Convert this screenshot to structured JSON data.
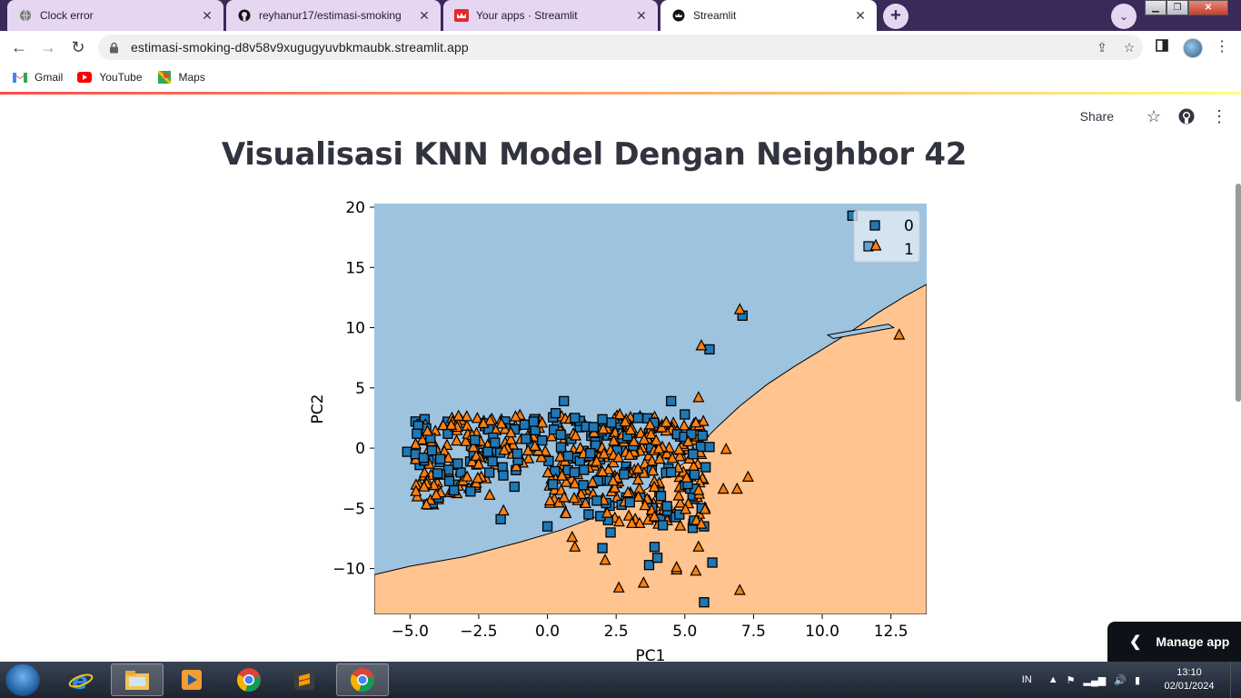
{
  "browser": {
    "tabs": [
      {
        "title": "Clock error",
        "active": false
      },
      {
        "title": "reyhanur17/estimasi-smoking",
        "active": false
      },
      {
        "title": "Your apps · Streamlit",
        "active": false
      },
      {
        "title": "Streamlit",
        "active": true
      }
    ],
    "address": "estimasi-smoking-d8v58v9xugugyuvbkmaubk.streamlit.app",
    "bookmarks": [
      {
        "label": "Gmail",
        "icon": "gmail-icon"
      },
      {
        "label": "YouTube",
        "icon": "youtube-icon"
      },
      {
        "label": "Maps",
        "icon": "maps-icon"
      }
    ]
  },
  "app": {
    "share_label": "Share",
    "title": "Visualisasi KNN Model Dengan Neighbor 42",
    "manage_label": "Manage app"
  },
  "chart_data": {
    "type": "scatter",
    "title": "",
    "xlabel": "PC1",
    "ylabel": "PC2",
    "xlim": [
      -6.3,
      13.8
    ],
    "ylim": [
      -13.8,
      20.3
    ],
    "xticks": [
      -5.0,
      -2.5,
      0.0,
      2.5,
      5.0,
      7.5,
      10.0,
      12.5
    ],
    "yticks": [
      20,
      15,
      10,
      5,
      0,
      -5,
      -10
    ],
    "xtick_labels": [
      "−5.0",
      "−2.5",
      "0.0",
      "2.5",
      "5.0",
      "7.5",
      "10.0",
      "12.5"
    ],
    "ytick_labels": [
      "20",
      "15",
      "10",
      "5",
      "0",
      "−5",
      "−10"
    ],
    "legend": {
      "position": "top-right",
      "entries": [
        {
          "label": "0",
          "marker": "square"
        },
        {
          "label": "1",
          "marker": "triangle"
        }
      ]
    },
    "colors": {
      "class0_region": "#9dc3df",
      "class1_region": "#ffc490",
      "class0_marker": "#1f77b4",
      "class1_marker": "#ff7f0e"
    },
    "series": [
      {
        "name": "0",
        "marker": "square",
        "points": [
          [
            -5.1,
            -0.3
          ],
          [
            -4.8,
            -0.5
          ],
          [
            -4.5,
            -0.8
          ],
          [
            -4.2,
            -0.2
          ],
          [
            -3.9,
            -0.9
          ],
          [
            -3.6,
            -1.8
          ],
          [
            -3.4,
            -3.5
          ],
          [
            -2.8,
            -3.6
          ],
          [
            -3.9,
            -2.2
          ],
          [
            -1.7,
            -5.9
          ],
          [
            -1.2,
            -3.2
          ],
          [
            0.0,
            -6.5
          ],
          [
            0.3,
            2.9
          ],
          [
            0.6,
            3.9
          ],
          [
            2.0,
            2.4
          ],
          [
            2.0,
            -8.3
          ],
          [
            3.9,
            -8.2
          ],
          [
            3.7,
            -9.7
          ],
          [
            4.0,
            -9.1
          ],
          [
            4.2,
            -6.4
          ],
          [
            5.0,
            2.8
          ],
          [
            5.7,
            -6.5
          ],
          [
            6.0,
            -9.5
          ],
          [
            5.7,
            -12.8
          ],
          [
            4.5,
            3.9
          ],
          [
            5.9,
            0.1
          ],
          [
            5.9,
            8.2
          ],
          [
            7.1,
            11.0
          ],
          [
            11.1,
            19.3
          ],
          [
            -4.0,
            -2.1
          ],
          [
            -2.0,
            -1.1
          ],
          [
            -0.5,
            2.2
          ],
          [
            1.0,
            2.5
          ],
          [
            3.3,
            2.5
          ],
          [
            2.3,
            -7.0
          ],
          [
            1.5,
            -5.5
          ],
          [
            0.2,
            -3.0
          ],
          [
            3.0,
            -4.5
          ],
          [
            4.5,
            -2.0
          ],
          [
            5.3,
            -0.5
          ]
        ]
      },
      {
        "name": "1",
        "marker": "triangle",
        "points": [
          [
            12.8,
            9.4
          ],
          [
            7.0,
            11.5
          ],
          [
            5.6,
            8.5
          ],
          [
            5.5,
            4.2
          ],
          [
            5.4,
            2.1
          ],
          [
            6.5,
            -0.1
          ],
          [
            7.3,
            -2.4
          ],
          [
            6.9,
            -3.4
          ],
          [
            6.4,
            -3.4
          ],
          [
            5.5,
            -3.5
          ],
          [
            5.6,
            -6.3
          ],
          [
            5.5,
            -8.2
          ],
          [
            5.4,
            -10.2
          ],
          [
            4.7,
            -10.1
          ],
          [
            4.7,
            -9.9
          ],
          [
            3.5,
            -11.2
          ],
          [
            2.6,
            -11.6
          ],
          [
            7.0,
            -11.8
          ],
          [
            2.1,
            -9.3
          ],
          [
            1.0,
            -8.2
          ],
          [
            0.9,
            -7.4
          ],
          [
            -1.6,
            -5.2
          ],
          [
            -2.1,
            -3.9
          ]
        ]
      }
    ],
    "clusters": [
      {
        "class": "1",
        "note": "dense overlapping cluster",
        "x_range": [
          -4.0,
          6.0
        ],
        "y_range": [
          -7.0,
          3.0
        ]
      },
      {
        "class": "0",
        "note": "dense overlapping cluster",
        "x_range": [
          -5.0,
          6.0
        ],
        "y_range": [
          -6.0,
          3.0
        ]
      }
    ]
  },
  "taskbar": {
    "apps": [
      "ie-icon",
      "explorer-icon",
      "media-player-icon",
      "chrome-icon",
      "sublime-icon",
      "chrome-active-icon"
    ],
    "lang": "IN",
    "time": "13:10",
    "date": "02/01/2024"
  }
}
